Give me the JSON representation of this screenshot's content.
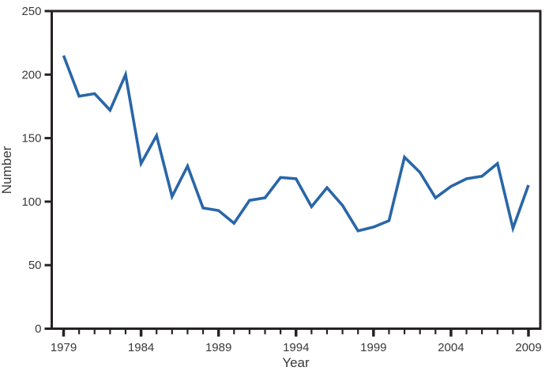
{
  "chart_data": {
    "type": "line",
    "title": "",
    "xlabel": "Year",
    "ylabel": "Number",
    "x": [
      1979,
      1980,
      1981,
      1982,
      1983,
      1984,
      1985,
      1986,
      1987,
      1988,
      1989,
      1990,
      1991,
      1992,
      1993,
      1994,
      1995,
      1996,
      1997,
      1998,
      1999,
      2000,
      2001,
      2002,
      2003,
      2004,
      2005,
      2006,
      2007,
      2008,
      2009
    ],
    "values": [
      215,
      183,
      185,
      172,
      200,
      130,
      152,
      104,
      128,
      95,
      93,
      83,
      101,
      103,
      119,
      118,
      96,
      111,
      97,
      77,
      80,
      85,
      135,
      123,
      103,
      112,
      118,
      120,
      130,
      79,
      113
    ],
    "ylim": [
      0,
      250
    ],
    "yticks": [
      0,
      50,
      100,
      150,
      200,
      250
    ],
    "xtick_labels": [
      1979,
      1984,
      1989,
      1994,
      1999,
      2004,
      2009
    ],
    "grid": false,
    "legend": "none",
    "colors": {
      "line": "#2966A8",
      "axis": "#272222",
      "text": "#3A3A3A"
    }
  }
}
